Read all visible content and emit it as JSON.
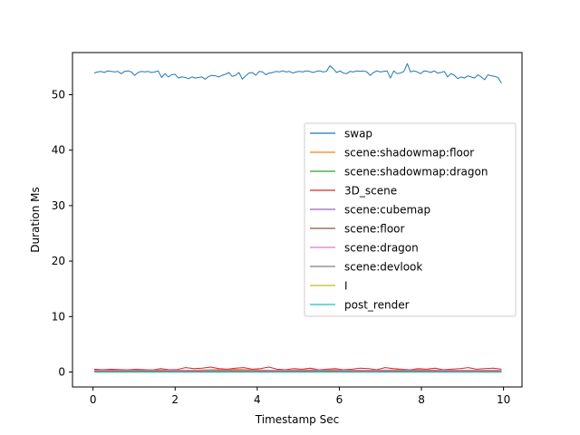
{
  "chart_data": {
    "type": "line",
    "title": "",
    "xlabel": "Timestamp Sec",
    "ylabel": "Duration Ms",
    "xlim": [
      -0.5,
      10.45
    ],
    "ylim": [
      -2.7,
      57.6
    ],
    "xticks": [
      0,
      2,
      4,
      6,
      8,
      10
    ],
    "yticks": [
      0,
      10,
      20,
      30,
      40,
      50
    ],
    "grid": false,
    "legend_position": "center-right",
    "x_start": 0.03,
    "x_step": 0.08,
    "series": [
      {
        "name": "swap",
        "color": "#1f77b4",
        "values": [
          53.9,
          54.1,
          54.2,
          54.0,
          54.3,
          54.2,
          54.1,
          54.2,
          53.8,
          54.2,
          54.3,
          54.1,
          53.5,
          54.0,
          54.2,
          54.1,
          54.2,
          54.0,
          54.1,
          54.3,
          53.1,
          53.8,
          53.2,
          53.6,
          53.7,
          53.0,
          53.2,
          53.1,
          52.9,
          53.2,
          53.0,
          53.1,
          53.2,
          52.8,
          53.3,
          53.5,
          53.4,
          53.2,
          53.5,
          53.7,
          54.0,
          53.3,
          53.5,
          54.0,
          52.8,
          53.4,
          53.9,
          54.0,
          53.5,
          54.2,
          54.1,
          53.6,
          53.9,
          54.0,
          54.2,
          54.1,
          54.3,
          54.1,
          54.2,
          53.9,
          54.1,
          54.2,
          54.1,
          54.3,
          54.2,
          54.0,
          54.2,
          54.3,
          54.1,
          54.2,
          55.2,
          54.7,
          54.0,
          54.3,
          53.9,
          53.8,
          54.2,
          54.1,
          54.3,
          54.2,
          54.3,
          54.1,
          53.5,
          54.0,
          54.3,
          54.1,
          54.2,
          54.3,
          53.0,
          54.3,
          53.8,
          53.9,
          54.2,
          55.6,
          54.1,
          54.3,
          54.1,
          53.8,
          54.3,
          54.2,
          54.0,
          54.3,
          53.9,
          54.0,
          54.2,
          53.2,
          53.8,
          53.5,
          52.9,
          53.2,
          53.0,
          53.4,
          53.2,
          53.0,
          53.6,
          53.2,
          52.7,
          53.6,
          53.4,
          53.3,
          53.1,
          52.1
        ],
        "baseline_y": 0
      },
      {
        "name": "scene:shadowmap:floor",
        "color": "#ff7f0e",
        "values": [
          0.3,
          0.4,
          0.3,
          0.5,
          0.3,
          0.4,
          0.3,
          0.4,
          0.3,
          0.3
        ],
        "baseline_y": 0.35
      },
      {
        "name": "scene:shadowmap:dragon",
        "color": "#2ca02c",
        "values": [
          0.2,
          0.25,
          0.2,
          0.3,
          0.2,
          0.25,
          0.2,
          0.25,
          0.2,
          0.2
        ],
        "baseline_y": 0.22
      },
      {
        "name": "3D_scene",
        "color": "#d62728",
        "values": [
          0.5,
          0.4,
          0.5,
          0.45,
          0.4,
          0.5,
          0.45,
          0.35,
          0.6,
          0.4,
          0.45,
          0.8,
          0.6,
          0.7,
          0.9,
          0.6,
          0.5,
          0.7,
          0.8,
          0.5,
          0.6,
          0.9,
          0.5,
          0.4,
          0.6,
          0.5,
          0.7,
          0.4,
          0.5,
          0.6,
          0.4,
          0.5,
          0.7,
          0.6,
          0.4,
          0.8,
          0.6,
          0.5,
          0.4,
          0.6,
          0.5,
          0.7,
          0.4,
          0.5,
          0.6,
          0.8,
          0.5,
          0.6,
          0.7,
          0.5
        ],
        "baseline_y": 0
      },
      {
        "name": "scene:cubemap",
        "color": "#9467bd",
        "values": [
          0.15,
          0.15,
          0.15,
          0.15,
          0.15,
          0.15,
          0.15,
          0.15,
          0.15,
          0.15
        ],
        "baseline_y": 0.15
      },
      {
        "name": "scene:floor",
        "color": "#8c564b",
        "values": [
          0.1,
          0.12,
          0.1,
          0.12,
          0.1,
          0.12,
          0.1,
          0.12,
          0.1,
          0.1
        ],
        "baseline_y": 0.1
      },
      {
        "name": "scene:dragon",
        "color": "#e377c2",
        "values": [
          0.3,
          0.35,
          0.3,
          0.35,
          0.3,
          0.35,
          0.3,
          0.35,
          0.3,
          0.3
        ],
        "baseline_y": 0.3
      },
      {
        "name": "scene:devlook",
        "color": "#7f7f7f",
        "values": [
          0.05,
          0.05,
          0.05,
          0.05,
          0.05,
          0.05,
          0.05,
          0.05,
          0.05,
          0.05
        ],
        "baseline_y": 0.05
      },
      {
        "name": "I",
        "color": "#bcbd22",
        "values": [
          0.02,
          0.02,
          0.02,
          0.02,
          0.02,
          0.02,
          0.02,
          0.02,
          0.02,
          0.02
        ],
        "baseline_y": 0.02
      },
      {
        "name": "post_render",
        "color": "#17becf",
        "values": [
          -0.05,
          -0.05,
          -0.05,
          -0.05,
          -0.05,
          -0.05,
          -0.05,
          -0.05,
          -0.05,
          -0.05
        ],
        "baseline_y": -0.05
      }
    ]
  }
}
